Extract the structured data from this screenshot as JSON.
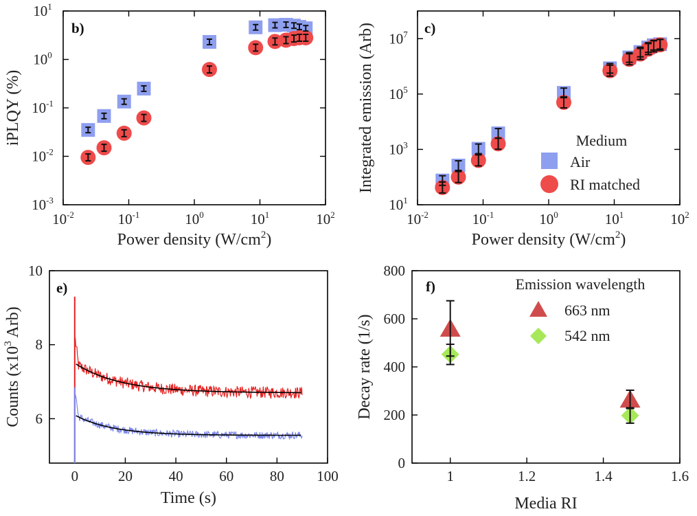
{
  "colors": {
    "air": "#8f9fef",
    "ri": "#ee4b4b",
    "trace_red": "#e62020",
    "trace_blue": "#7b86e8",
    "fit": "#000000",
    "tri": "#d04c4c",
    "dia": "#a6e85a",
    "errbar": "#111111"
  },
  "chart_data": [
    {
      "panel": "b)",
      "type": "scatter",
      "xlabel": "Power density (W/cm",
      "xlabel_sup": "2",
      "xlabel_end": ")",
      "ylabel": "iPLQY (%)",
      "xscale": "log",
      "yscale": "log",
      "xlim": [
        0.01,
        100
      ],
      "ylim": [
        0.001,
        10
      ],
      "xticks": [
        {
          "base": "10",
          "exp": "-2"
        },
        {
          "base": "10",
          "exp": "-1"
        },
        {
          "base": "10",
          "exp": "0"
        },
        {
          "base": "10",
          "exp": "1"
        },
        {
          "base": "10",
          "exp": "2"
        }
      ],
      "yticks": [
        {
          "base": "10",
          "exp": "-3"
        },
        {
          "base": "10",
          "exp": "-2"
        },
        {
          "base": "10",
          "exp": "-1"
        },
        {
          "base": "10",
          "exp": "0"
        },
        {
          "base": "10",
          "exp": "1"
        }
      ],
      "series": [
        {
          "name": "Air",
          "marker": "square",
          "x": [
            0.024,
            0.042,
            0.085,
            0.17,
            1.7,
            8.6,
            17,
            25,
            33,
            40,
            50
          ],
          "y": [
            0.035,
            0.068,
            0.135,
            0.25,
            2.3,
            4.6,
            5.1,
            5.2,
            5.0,
            4.7,
            4.4
          ]
        },
        {
          "name": "RI matched",
          "marker": "circle",
          "x": [
            0.024,
            0.042,
            0.085,
            0.17,
            1.7,
            8.6,
            17,
            25,
            33,
            40,
            50
          ],
          "y": [
            0.0095,
            0.015,
            0.03,
            0.062,
            0.62,
            1.75,
            2.35,
            2.5,
            2.7,
            2.8,
            2.8
          ]
        }
      ]
    },
    {
      "panel": "c)",
      "type": "scatter",
      "xlabel": "Power density (W/cm",
      "xlabel_sup": "2",
      "xlabel_end": ")",
      "ylabel": "Integrated emission (Arb)",
      "xscale": "log",
      "yscale": "log",
      "xlim": [
        0.01,
        100
      ],
      "ylim": [
        10,
        100000000
      ],
      "xticks": [
        {
          "base": "10",
          "exp": "-2"
        },
        {
          "base": "10",
          "exp": "-1"
        },
        {
          "base": "10",
          "exp": "0"
        },
        {
          "base": "10",
          "exp": "1"
        },
        {
          "base": "10",
          "exp": "2"
        }
      ],
      "yticks": [
        {
          "base": "10",
          "exp": "1"
        },
        {
          "base": "10",
          "exp": "3"
        },
        {
          "base": "10",
          "exp": "5"
        },
        {
          "base": "10",
          "exp": "7"
        }
      ],
      "legend_title": "Medium",
      "legend_position": "middle-right",
      "series": [
        {
          "name": "Air",
          "marker": "square",
          "x": [
            0.024,
            0.042,
            0.085,
            0.17,
            1.7,
            8.6,
            17,
            25,
            33,
            40,
            50
          ],
          "y": [
            75,
            260,
            1050,
            3800,
            110000,
            850000,
            2100000,
            3300000,
            4800000,
            5800000,
            6300000
          ]
        },
        {
          "name": "RI matched",
          "marker": "circle",
          "x": [
            0.024,
            0.042,
            0.085,
            0.17,
            1.7,
            8.6,
            17,
            25,
            33,
            40,
            50
          ],
          "y": [
            42,
            100,
            400,
            1600,
            50000,
            700000,
            1800000,
            2800000,
            4200000,
            5300000,
            6000000
          ]
        }
      ]
    },
    {
      "panel": "e)",
      "type": "line",
      "xlabel": "Time (s)",
      "ylabel": "Counts (x10",
      "ylabel_sup": "3",
      "ylabel_end": " Arb)",
      "xlim": [
        -10,
        100
      ],
      "ylim": [
        4.8,
        10
      ],
      "xticks": [
        "0",
        "20",
        "40",
        "60",
        "80",
        "100"
      ],
      "yticks": [
        "6",
        "8",
        "10"
      ],
      "series": [
        {
          "name": "",
          "color": "trace_red",
          "spike": 9.3,
          "x_end": 90,
          "start": 7.5,
          "plateau": 6.7,
          "tau": 18,
          "noise": 0.16
        },
        {
          "name": "",
          "color": "trace_blue",
          "spike": 6.85,
          "x_end": 90,
          "start": 6.1,
          "plateau": 5.55,
          "tau": 15,
          "noise": 0.1
        }
      ]
    },
    {
      "panel": "f)",
      "type": "scatter",
      "xlabel": "Media RI",
      "ylabel": "Decay rate (1/s)",
      "xlim": [
        0.9,
        1.6
      ],
      "ylim": [
        0,
        800
      ],
      "xticks": [
        "1",
        "1.2",
        "1.4",
        "1.6"
      ],
      "yticks": [
        "0",
        "200",
        "400",
        "600",
        "800"
      ],
      "legend_title": "Emission wavelength",
      "legend_position": "top-right",
      "series": [
        {
          "name": "663 nm",
          "marker": "triangle",
          "x": [
            1.0,
            1.47
          ],
          "y": [
            560,
            265
          ],
          "err": [
            115,
            38
          ]
        },
        {
          "name": "542 nm",
          "marker": "diamond",
          "x": [
            1.0,
            1.47
          ],
          "y": [
            452,
            198
          ],
          "err": [
            42,
            32
          ]
        }
      ]
    }
  ]
}
